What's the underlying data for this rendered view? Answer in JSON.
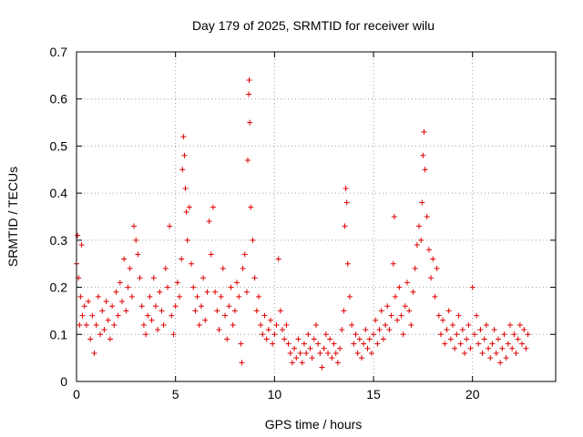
{
  "chart_data": {
    "type": "scatter",
    "title": "Day 179 of 2025, SRMTID for receiver wilu",
    "xlabel": "GPS time / hours",
    "ylabel": "SRMTID / TECUs",
    "xlim": [
      0,
      24.2
    ],
    "ylim": [
      0,
      0.7
    ],
    "xticks": [
      0,
      5,
      10,
      15,
      20
    ],
    "xtick_labels": [
      "0",
      "5",
      "10",
      "15",
      "20"
    ],
    "yticks": [
      0,
      0.1,
      0.2,
      0.3,
      0.4,
      0.5,
      0.6,
      0.7
    ],
    "ytick_labels": [
      "0",
      "0.1",
      "0.2",
      "0.3",
      "0.4",
      "0.5",
      "0.6",
      "0.7"
    ],
    "grid": true,
    "marker": "+",
    "color": "#e00000",
    "series": [
      {
        "name": "SRMTID",
        "points": [
          [
            0.0,
            0.25
          ],
          [
            0.05,
            0.31
          ],
          [
            0.1,
            0.22
          ],
          [
            0.15,
            0.12
          ],
          [
            0.2,
            0.18
          ],
          [
            0.25,
            0.29
          ],
          [
            0.3,
            0.14
          ],
          [
            0.4,
            0.16
          ],
          [
            0.5,
            0.12
          ],
          [
            0.6,
            0.17
          ],
          [
            0.7,
            0.09
          ],
          [
            0.8,
            0.14
          ],
          [
            0.9,
            0.06
          ],
          [
            1.0,
            0.12
          ],
          [
            1.1,
            0.18
          ],
          [
            1.2,
            0.1
          ],
          [
            1.3,
            0.15
          ],
          [
            1.4,
            0.11
          ],
          [
            1.5,
            0.17
          ],
          [
            1.6,
            0.13
          ],
          [
            1.7,
            0.09
          ],
          [
            1.8,
            0.16
          ],
          [
            1.9,
            0.12
          ],
          [
            2.0,
            0.19
          ],
          [
            2.1,
            0.14
          ],
          [
            2.2,
            0.21
          ],
          [
            2.3,
            0.17
          ],
          [
            2.4,
            0.26
          ],
          [
            2.5,
            0.15
          ],
          [
            2.6,
            0.2
          ],
          [
            2.7,
            0.24
          ],
          [
            2.8,
            0.18
          ],
          [
            2.9,
            0.33
          ],
          [
            3.0,
            0.3
          ],
          [
            3.1,
            0.27
          ],
          [
            3.2,
            0.22
          ],
          [
            3.3,
            0.16
          ],
          [
            3.4,
            0.12
          ],
          [
            3.5,
            0.1
          ],
          [
            3.6,
            0.14
          ],
          [
            3.7,
            0.18
          ],
          [
            3.8,
            0.13
          ],
          [
            3.9,
            0.22
          ],
          [
            4.0,
            0.16
          ],
          [
            4.1,
            0.11
          ],
          [
            4.2,
            0.19
          ],
          [
            4.3,
            0.15
          ],
          [
            4.4,
            0.12
          ],
          [
            4.5,
            0.24
          ],
          [
            4.6,
            0.2
          ],
          [
            4.7,
            0.33
          ],
          [
            4.8,
            0.14
          ],
          [
            4.9,
            0.1
          ],
          [
            5.0,
            0.16
          ],
          [
            5.1,
            0.21
          ],
          [
            5.2,
            0.18
          ],
          [
            5.3,
            0.26
          ],
          [
            5.35,
            0.45
          ],
          [
            5.4,
            0.52
          ],
          [
            5.45,
            0.48
          ],
          [
            5.5,
            0.41
          ],
          [
            5.55,
            0.36
          ],
          [
            5.6,
            0.3
          ],
          [
            5.7,
            0.37
          ],
          [
            5.8,
            0.25
          ],
          [
            5.9,
            0.2
          ],
          [
            6.0,
            0.15
          ],
          [
            6.1,
            0.18
          ],
          [
            6.2,
            0.12
          ],
          [
            6.3,
            0.16
          ],
          [
            6.4,
            0.22
          ],
          [
            6.5,
            0.13
          ],
          [
            6.6,
            0.19
          ],
          [
            6.7,
            0.34
          ],
          [
            6.8,
            0.27
          ],
          [
            6.9,
            0.37
          ],
          [
            7.0,
            0.19
          ],
          [
            7.1,
            0.15
          ],
          [
            7.2,
            0.11
          ],
          [
            7.3,
            0.18
          ],
          [
            7.4,
            0.24
          ],
          [
            7.5,
            0.14
          ],
          [
            7.6,
            0.09
          ],
          [
            7.7,
            0.16
          ],
          [
            7.8,
            0.2
          ],
          [
            7.9,
            0.12
          ],
          [
            8.0,
            0.15
          ],
          [
            8.1,
            0.21
          ],
          [
            8.2,
            0.18
          ],
          [
            8.3,
            0.08
          ],
          [
            8.35,
            0.04
          ],
          [
            8.4,
            0.24
          ],
          [
            8.5,
            0.27
          ],
          [
            8.6,
            0.19
          ],
          [
            8.65,
            0.47
          ],
          [
            8.7,
            0.61
          ],
          [
            8.72,
            0.64
          ],
          [
            8.75,
            0.55
          ],
          [
            8.8,
            0.37
          ],
          [
            8.9,
            0.3
          ],
          [
            9.0,
            0.22
          ],
          [
            9.1,
            0.15
          ],
          [
            9.2,
            0.18
          ],
          [
            9.3,
            0.12
          ],
          [
            9.4,
            0.1
          ],
          [
            9.5,
            0.14
          ],
          [
            9.6,
            0.09
          ],
          [
            9.7,
            0.11
          ],
          [
            9.8,
            0.13
          ],
          [
            9.9,
            0.08
          ],
          [
            10.0,
            0.1
          ],
          [
            10.1,
            0.12
          ],
          [
            10.2,
            0.26
          ],
          [
            10.3,
            0.15
          ],
          [
            10.4,
            0.11
          ],
          [
            10.5,
            0.09
          ],
          [
            10.6,
            0.12
          ],
          [
            10.7,
            0.08
          ],
          [
            10.8,
            0.06
          ],
          [
            10.9,
            0.04
          ],
          [
            11.0,
            0.07
          ],
          [
            11.1,
            0.05
          ],
          [
            11.2,
            0.09
          ],
          [
            11.3,
            0.06
          ],
          [
            11.4,
            0.04
          ],
          [
            11.5,
            0.08
          ],
          [
            11.6,
            0.06
          ],
          [
            11.7,
            0.1
          ],
          [
            11.8,
            0.07
          ],
          [
            11.9,
            0.05
          ],
          [
            12.0,
            0.09
          ],
          [
            12.1,
            0.12
          ],
          [
            12.2,
            0.08
          ],
          [
            12.3,
            0.06
          ],
          [
            12.4,
            0.03
          ],
          [
            12.5,
            0.07
          ],
          [
            12.6,
            0.1
          ],
          [
            12.7,
            0.06
          ],
          [
            12.8,
            0.09
          ],
          [
            12.9,
            0.05
          ],
          [
            13.0,
            0.08
          ],
          [
            13.1,
            0.06
          ],
          [
            13.2,
            0.04
          ],
          [
            13.3,
            0.07
          ],
          [
            13.4,
            0.11
          ],
          [
            13.5,
            0.15
          ],
          [
            13.55,
            0.33
          ],
          [
            13.6,
            0.41
          ],
          [
            13.65,
            0.38
          ],
          [
            13.7,
            0.25
          ],
          [
            13.8,
            0.18
          ],
          [
            13.9,
            0.12
          ],
          [
            14.0,
            0.08
          ],
          [
            14.1,
            0.1
          ],
          [
            14.2,
            0.06
          ],
          [
            14.3,
            0.09
          ],
          [
            14.4,
            0.05
          ],
          [
            14.5,
            0.08
          ],
          [
            14.6,
            0.11
          ],
          [
            14.7,
            0.07
          ],
          [
            14.8,
            0.09
          ],
          [
            14.9,
            0.06
          ],
          [
            15.0,
            0.1
          ],
          [
            15.1,
            0.13
          ],
          [
            15.2,
            0.08
          ],
          [
            15.3,
            0.11
          ],
          [
            15.4,
            0.15
          ],
          [
            15.5,
            0.09
          ],
          [
            15.6,
            0.12
          ],
          [
            15.7,
            0.16
          ],
          [
            15.8,
            0.11
          ],
          [
            15.9,
            0.14
          ],
          [
            16.0,
            0.25
          ],
          [
            16.05,
            0.35
          ],
          [
            16.1,
            0.18
          ],
          [
            16.2,
            0.13
          ],
          [
            16.3,
            0.2
          ],
          [
            16.4,
            0.14
          ],
          [
            16.5,
            0.1
          ],
          [
            16.6,
            0.16
          ],
          [
            16.7,
            0.21
          ],
          [
            16.8,
            0.15
          ],
          [
            16.9,
            0.12
          ],
          [
            17.0,
            0.19
          ],
          [
            17.1,
            0.24
          ],
          [
            17.2,
            0.29
          ],
          [
            17.3,
            0.33
          ],
          [
            17.4,
            0.3
          ],
          [
            17.45,
            0.38
          ],
          [
            17.5,
            0.48
          ],
          [
            17.55,
            0.53
          ],
          [
            17.6,
            0.45
          ],
          [
            17.7,
            0.35
          ],
          [
            17.8,
            0.28
          ],
          [
            17.9,
            0.22
          ],
          [
            18.0,
            0.26
          ],
          [
            18.1,
            0.18
          ],
          [
            18.2,
            0.24
          ],
          [
            18.3,
            0.14
          ],
          [
            18.4,
            0.1
          ],
          [
            18.5,
            0.13
          ],
          [
            18.6,
            0.08
          ],
          [
            18.7,
            0.11
          ],
          [
            18.8,
            0.15
          ],
          [
            18.9,
            0.09
          ],
          [
            19.0,
            0.12
          ],
          [
            19.1,
            0.07
          ],
          [
            19.2,
            0.1
          ],
          [
            19.3,
            0.14
          ],
          [
            19.4,
            0.08
          ],
          [
            19.5,
            0.11
          ],
          [
            19.6,
            0.06
          ],
          [
            19.7,
            0.09
          ],
          [
            19.8,
            0.12
          ],
          [
            19.9,
            0.07
          ],
          [
            20.0,
            0.2
          ],
          [
            20.1,
            0.1
          ],
          [
            20.2,
            0.14
          ],
          [
            20.3,
            0.08
          ],
          [
            20.4,
            0.11
          ],
          [
            20.5,
            0.06
          ],
          [
            20.6,
            0.09
          ],
          [
            20.7,
            0.12
          ],
          [
            20.8,
            0.07
          ],
          [
            20.9,
            0.05
          ],
          [
            21.0,
            0.08
          ],
          [
            21.1,
            0.11
          ],
          [
            21.2,
            0.06
          ],
          [
            21.3,
            0.09
          ],
          [
            21.4,
            0.04
          ],
          [
            21.5,
            0.07
          ],
          [
            21.6,
            0.1
          ],
          [
            21.7,
            0.05
          ],
          [
            21.8,
            0.08
          ],
          [
            21.9,
            0.12
          ],
          [
            22.0,
            0.07
          ],
          [
            22.1,
            0.1
          ],
          [
            22.2,
            0.06
          ],
          [
            22.3,
            0.09
          ],
          [
            22.4,
            0.12
          ],
          [
            22.5,
            0.08
          ],
          [
            22.6,
            0.11
          ],
          [
            22.7,
            0.07
          ],
          [
            22.8,
            0.1
          ]
        ]
      }
    ]
  }
}
